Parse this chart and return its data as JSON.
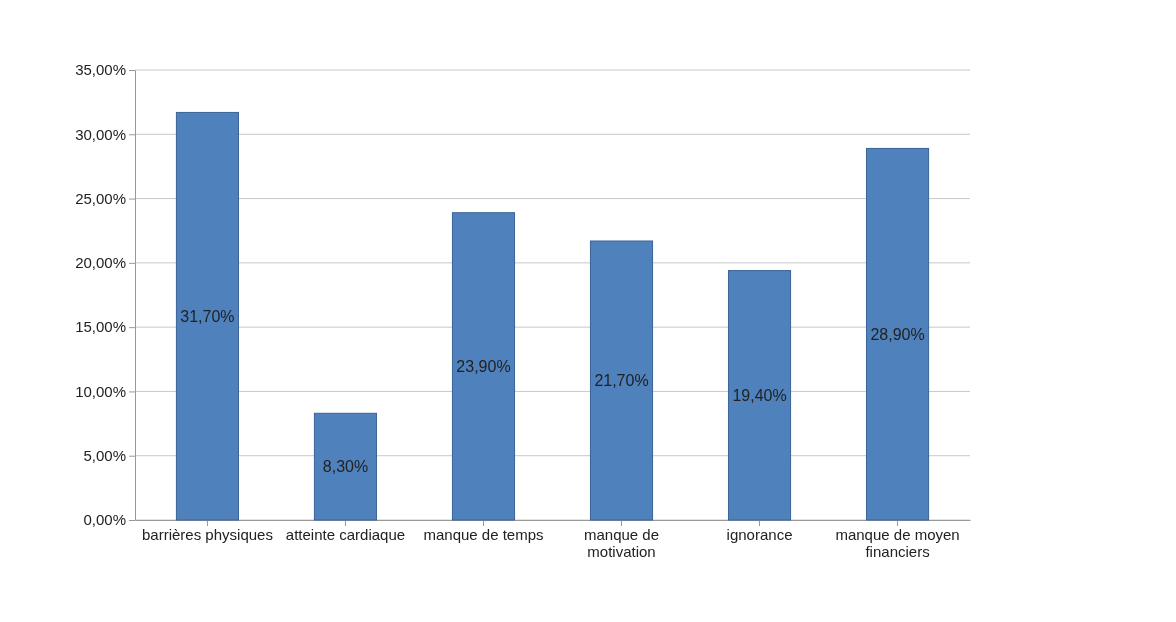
{
  "chart_data": {
    "type": "bar",
    "categories": [
      "barrières physiques",
      "atteinte cardiaque",
      "manque de temps",
      "manque de motivation",
      "ignorance",
      "manque de moyen financiers"
    ],
    "values": [
      31.7,
      8.3,
      23.9,
      21.7,
      19.4,
      28.9
    ],
    "value_labels": [
      "31,70%",
      "8,30%",
      "23,90%",
      "21,70%",
      "19,40%",
      "28,90%"
    ],
    "color": "#4f81bd",
    "ylim": [
      0,
      35
    ],
    "yticks": [
      {
        "value": 0,
        "label": "0,00%"
      },
      {
        "value": 5,
        "label": "5,00%"
      },
      {
        "value": 10,
        "label": "10,00%"
      },
      {
        "value": 15,
        "label": "15,00%"
      },
      {
        "value": 20,
        "label": "20,00%"
      },
      {
        "value": 25,
        "label": "25,00%"
      },
      {
        "value": 30,
        "label": "30,00%"
      },
      {
        "value": 35,
        "label": "35,00%"
      }
    ],
    "grid": "y"
  }
}
